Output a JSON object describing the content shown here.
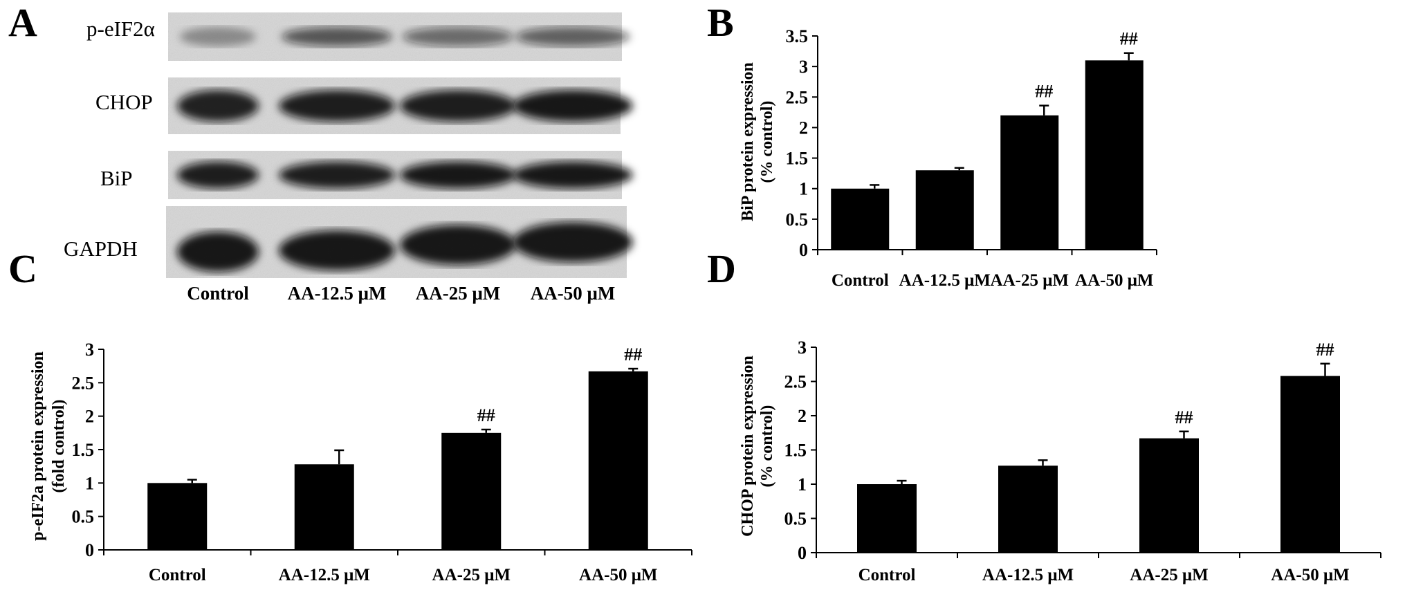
{
  "panel_letters": [
    "A",
    "B",
    "C",
    "D"
  ],
  "colors": {
    "bar": "#000000",
    "axis": "#000000",
    "blot_bg": "#d9d9d9",
    "band": "#0f0f0f"
  },
  "blot": {
    "row_labels": [
      "p-eIF2α",
      "CHOP",
      "BiP",
      "GAPDH"
    ],
    "lane_labels": [
      "Control",
      "AA-12.5 μM",
      "AA-25 μM",
      "AA-50 μM"
    ],
    "band_intensity": [
      [
        0.35,
        0.65,
        0.55,
        0.6
      ],
      [
        0.9,
        0.92,
        0.92,
        0.95
      ],
      [
        0.92,
        0.92,
        0.95,
        0.95
      ],
      [
        0.95,
        0.95,
        0.95,
        0.95
      ]
    ]
  },
  "chart_data": [
    {
      "id": "B",
      "type": "bar",
      "categories": [
        "Control",
        "AA-12.5 μM",
        "AA-25 μM",
        "AA-50 μM"
      ],
      "values": [
        1.0,
        1.3,
        2.2,
        3.1
      ],
      "errors": [
        0.06,
        0.04,
        0.16,
        0.12
      ],
      "annotations": [
        "",
        "",
        "##",
        "##"
      ],
      "ylabel": [
        "BiP protein expression",
        "(% control)"
      ],
      "ylim": [
        0,
        3.5
      ],
      "yticks": [
        "0",
        "0.5",
        "1",
        "1.5",
        "2",
        "2.5",
        "3",
        "3.5"
      ],
      "grid": false
    },
    {
      "id": "C",
      "type": "bar",
      "categories": [
        "Control",
        "AA-12.5 μM",
        "AA-25 μM",
        "AA-50 μM"
      ],
      "values": [
        1.0,
        1.28,
        1.75,
        2.67
      ],
      "errors": [
        0.05,
        0.21,
        0.05,
        0.04
      ],
      "annotations": [
        "",
        "",
        "##",
        "##"
      ],
      "ylabel": [
        "p-eIF2a protein expression",
        "(fold control)"
      ],
      "ylim": [
        0,
        3
      ],
      "yticks": [
        "0",
        "0.5",
        "1",
        "1.5",
        "2",
        "2.5",
        "3"
      ],
      "grid": false
    },
    {
      "id": "D",
      "type": "bar",
      "categories": [
        "Control",
        "AA-12.5 μM",
        "AA-25 μM",
        "AA-50 μM"
      ],
      "values": [
        1.0,
        1.27,
        1.67,
        2.58
      ],
      "errors": [
        0.05,
        0.08,
        0.1,
        0.18
      ],
      "annotations": [
        "",
        "",
        "##",
        "##"
      ],
      "ylabel": [
        "CHOP protein expression",
        "(% control)"
      ],
      "ylim": [
        0,
        3
      ],
      "yticks": [
        "0",
        "0.5",
        "1",
        "1.5",
        "2",
        "2.5",
        "3"
      ],
      "grid": false
    }
  ]
}
